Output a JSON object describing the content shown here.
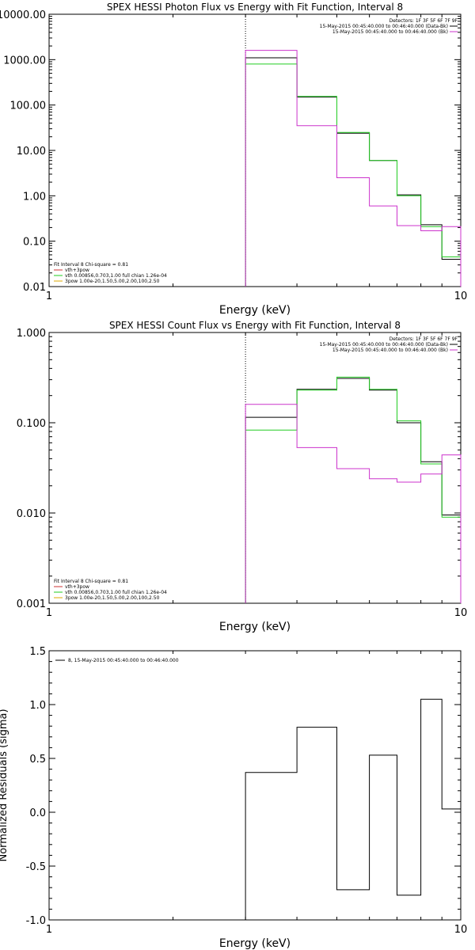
{
  "chart_data": [
    {
      "type": "line",
      "title": "SPEX HESSI Photon Flux vs Energy with Fit Function, Interval 8",
      "xlabel": "Energy (keV)",
      "ylabel": "",
      "scale": "log-log",
      "xlim": [
        1,
        10
      ],
      "ylim": [
        0.01,
        10000
      ],
      "xticks": [
        "1",
        "10"
      ],
      "yticks": [
        "0.01",
        "0.10",
        "1.00",
        "10.00",
        "100.00",
        "1000.00",
        "10000.00"
      ],
      "vline_x": 3,
      "legend_tr": [
        "Detectors: 1F 3F 5F 6F 7F 9F",
        "15-May-2015 00:45:40.000 to 00:46:40.000 (Data-Bk)",
        "15-May-2015 00:45:40.000 to 00:46:40.000 (Bk)"
      ],
      "legend_bl": [
        "Fit Interval 8   Chi-square = 0.81",
        "vth+3pow",
        "vth 0.00856,0.703,1.00   full chian 1.26e-04",
        "3pow 1.00e-20,1.50,5.00,2.00,100,2.50"
      ],
      "x_edges": [
        3,
        4,
        5,
        6,
        7,
        8,
        9,
        10
      ],
      "series": [
        {
          "legend": "(Data-Bk)",
          "color": "#000000",
          "values": [
            1100,
            150,
            24,
            6,
            1.05,
            0.23,
            0.04
          ]
        },
        {
          "legend": "vth 0.00856,0.703,1.00",
          "color": "#22cc22",
          "values": [
            800,
            155,
            25,
            6,
            1.0,
            0.21,
            0.045
          ]
        },
        {
          "legend": "(Bk)",
          "color": "#cc33cc",
          "values": [
            1600,
            35,
            2.5,
            0.6,
            0.22,
            0.17,
            0.21
          ]
        }
      ]
    },
    {
      "type": "line",
      "title": "SPEX HESSI Count Flux vs Energy with Fit Function, Interval 8",
      "xlabel": "Energy (keV)",
      "ylabel": "",
      "scale": "log-log",
      "xlim": [
        1,
        10
      ],
      "ylim": [
        0.001,
        1
      ],
      "xticks": [
        "1",
        "10"
      ],
      "yticks": [
        "0.001",
        "0.010",
        "0.100",
        "1.000"
      ],
      "vline_x": 3,
      "legend_tr": [
        "Detectors: 1F 3F 5F 6F 7F 9F",
        "15-May-2015 00:45:40.000 to 00:46:40.000 (Data-Bk)",
        "15-May-2015 00:45:40.000 to 00:46:40.000 (Bk)"
      ],
      "legend_bl": [
        "Fit Interval 8   Chi-square = 0.81",
        "vth+3pow",
        "vth 0.00856,0.703,1.00   full chian 1.26e-04",
        "3pow 1.00e-20,1.50,5.00,2.00,100,2.50"
      ],
      "x_edges": [
        3,
        4,
        5,
        6,
        7,
        8,
        9,
        10
      ],
      "series": [
        {
          "legend": "(Data-Bk)",
          "color": "#000000",
          "values": [
            0.115,
            0.235,
            0.31,
            0.23,
            0.1,
            0.037,
            0.0095
          ]
        },
        {
          "legend": "vth 0.00856,0.703,1.00",
          "color": "#22cc22",
          "values": [
            0.083,
            0.23,
            0.32,
            0.235,
            0.105,
            0.035,
            0.009
          ]
        },
        {
          "legend": "(Bk)",
          "color": "#cc33cc",
          "values": [
            0.16,
            0.053,
            0.031,
            0.024,
            0.022,
            0.027,
            0.044
          ]
        }
      ]
    },
    {
      "type": "line",
      "title": "",
      "xlabel": "Energy (keV)",
      "ylabel": "Normalized Residuals (sigma)",
      "scale": "log-linear",
      "xlim": [
        1,
        10
      ],
      "ylim": [
        -1.0,
        1.5
      ],
      "xticks": [
        "1",
        "10"
      ],
      "yticks": [
        "-1.0",
        "-0.5",
        "0.0",
        "0.5",
        "1.0",
        "1.5"
      ],
      "legend_tl": [
        "8, 15-May-2015 00:45:40.000 to 00:46:40.000"
      ],
      "x_edges": [
        3,
        4,
        5,
        6,
        7,
        8,
        9,
        10
      ],
      "series": [
        {
          "legend": "8, 15-May-2015 00:45:40.000 to 00:46:40.000",
          "color": "#000000",
          "values": [
            0.37,
            0.79,
            -0.72,
            0.53,
            -0.77,
            1.05,
            0.03
          ]
        }
      ]
    }
  ]
}
